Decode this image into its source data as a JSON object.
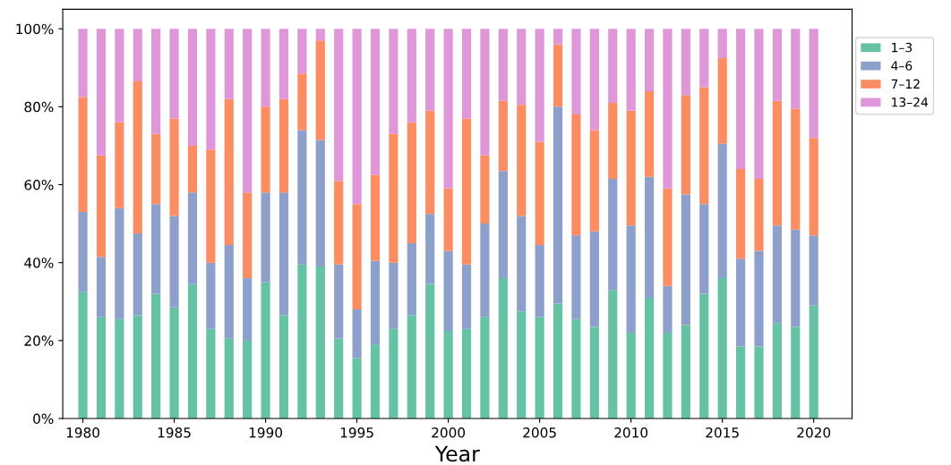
{
  "chart_data": {
    "type": "bar",
    "stacked": true,
    "xlabel": "Year",
    "x": [
      1980,
      1981,
      1982,
      1983,
      1984,
      1985,
      1986,
      1987,
      1988,
      1989,
      1990,
      1991,
      1992,
      1993,
      1994,
      1995,
      1996,
      1997,
      1998,
      1999,
      2000,
      2001,
      2002,
      2003,
      2004,
      2005,
      2006,
      2007,
      2008,
      2009,
      2010,
      2011,
      2012,
      2013,
      2014,
      2015,
      2016,
      2017,
      2018,
      2019,
      2020
    ],
    "series": [
      {
        "name": "1–3",
        "color": "#66c2a5",
        "values": [
          32.5,
          26,
          25.5,
          26.5,
          32,
          28.5,
          34.5,
          23,
          20.5,
          20,
          35,
          26.5,
          39.5,
          39,
          20.5,
          15.5,
          19,
          23,
          26.5,
          34.5,
          22.5,
          23,
          26,
          36,
          27.5,
          26,
          29.5,
          25.5,
          23.5,
          33,
          22,
          31,
          22,
          24,
          32,
          36,
          18.5,
          18.5,
          24.5,
          23.5,
          29
        ]
      },
      {
        "name": "4–6",
        "color": "#8da0cb",
        "values": [
          20.5,
          15.5,
          28.5,
          21,
          23,
          23.5,
          23.5,
          17,
          24,
          16,
          23,
          31.5,
          34.5,
          32.5,
          19,
          12.5,
          21.5,
          17,
          18.5,
          18,
          20.5,
          16.5,
          24,
          27.5,
          24.5,
          18.5,
          50.5,
          21.5,
          24.5,
          28.5,
          27.5,
          31,
          12,
          33.5,
          23,
          34.5,
          22.5,
          24.5,
          25,
          25,
          18
        ]
      },
      {
        "name": "7–12",
        "color": "#fc8d62",
        "values": [
          29.5,
          26,
          22,
          39,
          18,
          25,
          12,
          29,
          37.5,
          22,
          22,
          24,
          14.5,
          25.5,
          21.5,
          27,
          22,
          33,
          31,
          26.5,
          16,
          37.5,
          17.5,
          18,
          28.5,
          26.5,
          16,
          31,
          26,
          19.5,
          29.5,
          22,
          25,
          25.5,
          30,
          22,
          23,
          18.5,
          32,
          31,
          25
        ]
      },
      {
        "name": "13–24",
        "color": "#e097d9",
        "values": [
          17.5,
          32.5,
          24,
          13.5,
          27,
          23,
          30,
          31,
          18,
          42,
          20,
          18,
          11.5,
          3,
          39,
          45,
          37.5,
          27,
          24,
          21,
          41,
          23,
          32.5,
          18.5,
          19.5,
          29,
          4,
          22,
          26,
          19,
          21,
          16,
          41,
          17,
          15,
          7.5,
          36,
          38.5,
          18.5,
          20.5,
          28
        ]
      }
    ],
    "xlim": [
      1978.9,
      2022.1
    ],
    "xticks": [
      1980,
      1985,
      1990,
      1995,
      2000,
      2005,
      2010,
      2015,
      2020
    ],
    "ylim": [
      0,
      105
    ],
    "yticks": [
      {
        "value": 0,
        "label": "0%"
      },
      {
        "value": 20,
        "label": "20%"
      },
      {
        "value": 40,
        "label": "40%"
      },
      {
        "value": 60,
        "label": "60%"
      },
      {
        "value": 80,
        "label": "80%"
      },
      {
        "value": 100,
        "label": "100%"
      }
    ],
    "grid": false,
    "legend": "right"
  }
}
